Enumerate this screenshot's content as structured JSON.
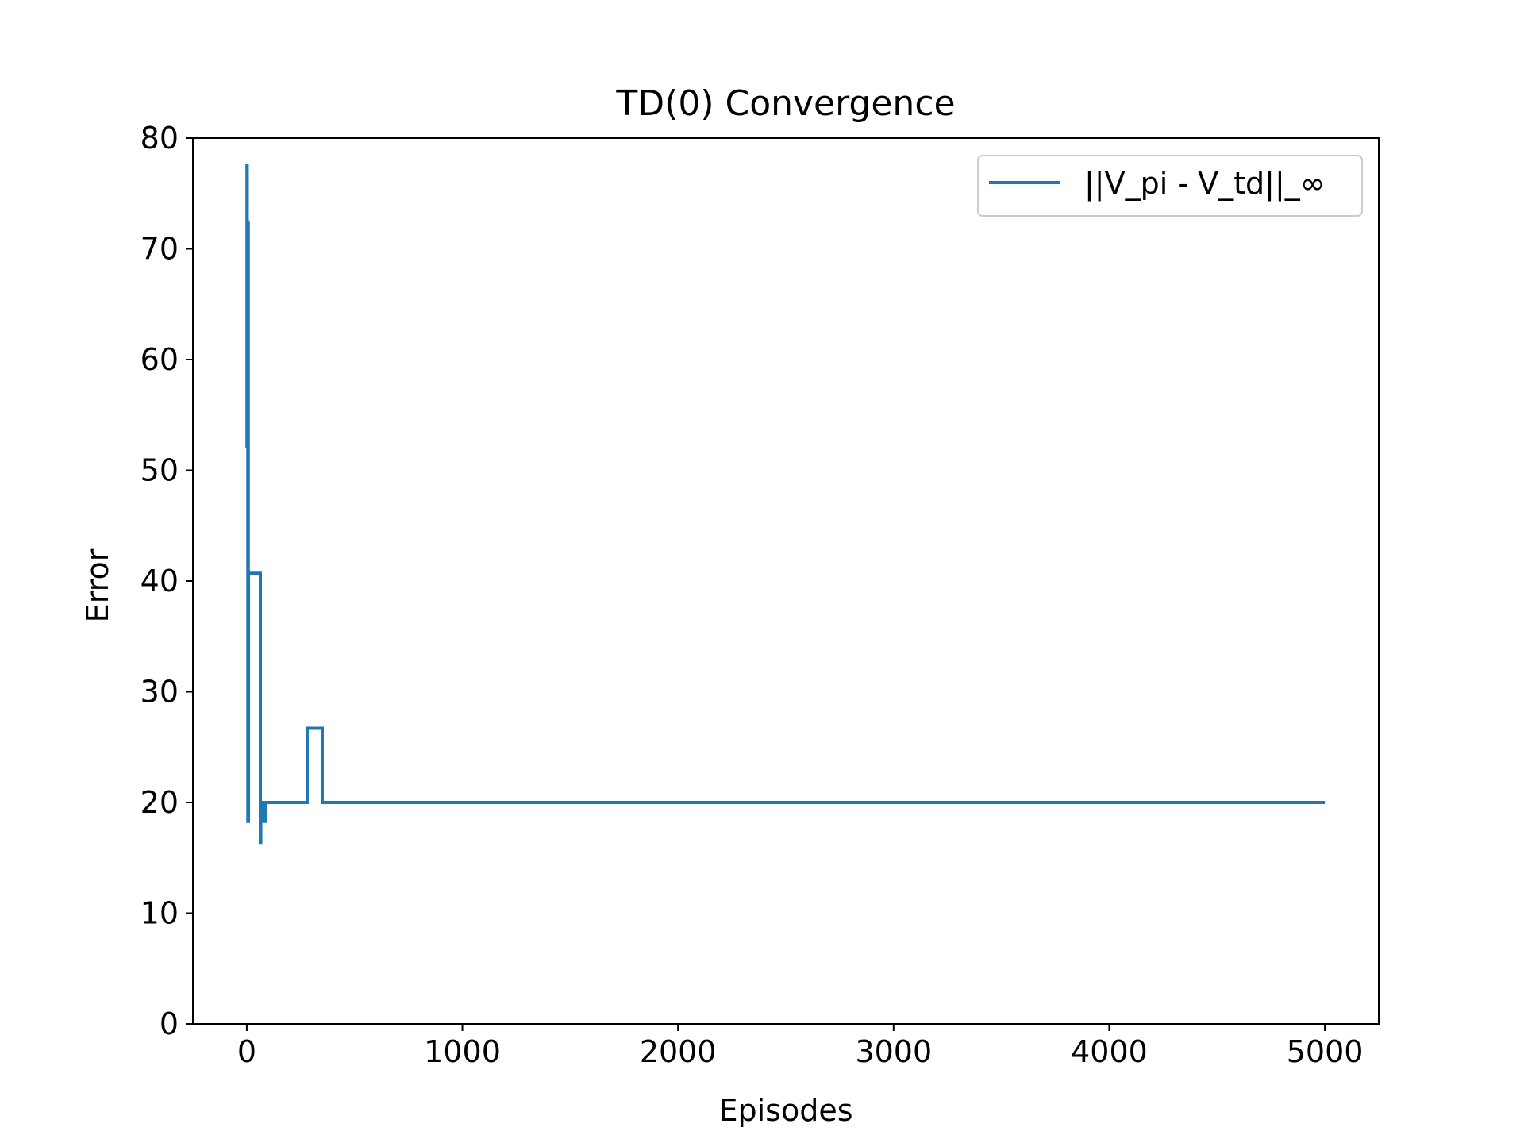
{
  "chart_data": {
    "type": "line",
    "title": "TD(0) Convergence",
    "xlabel": "Episodes",
    "ylabel": "Error",
    "xlim": [
      -250,
      5250
    ],
    "ylim": [
      0,
      80
    ],
    "xticks": [
      0,
      1000,
      2000,
      3000,
      4000,
      5000
    ],
    "xtick_labels": [
      "0",
      "1000",
      "2000",
      "3000",
      "4000",
      "5000"
    ],
    "yticks": [
      0,
      10,
      20,
      30,
      40,
      50,
      60,
      70,
      80
    ],
    "ytick_labels": [
      "0",
      "10",
      "20",
      "30",
      "40",
      "50",
      "60",
      "70",
      "80"
    ],
    "grid": false,
    "legend": {
      "position": "top-right"
    },
    "series": [
      {
        "name": "||V_pi - V_td||_∞",
        "color": "#1f77b4",
        "step": true,
        "x": [
          0,
          1,
          2,
          3,
          4,
          5,
          6,
          7,
          8,
          10,
          12,
          15,
          20,
          25,
          30,
          35,
          40,
          45,
          50,
          55,
          60,
          63,
          65,
          68,
          70,
          75,
          80,
          85,
          90,
          95,
          100,
          150,
          200,
          250,
          280,
          290,
          300,
          350,
          360,
          400,
          500,
          1000,
          2000,
          3000,
          4000,
          5000
        ],
        "values": [
          52,
          77.5,
          72.5,
          72.3,
          60,
          18.3,
          72.3,
          18.3,
          40.7,
          40.7,
          40.7,
          40.7,
          40.7,
          40.7,
          40.7,
          40.7,
          40.7,
          40.7,
          40.7,
          40.7,
          40.7,
          16.4,
          18.3,
          20,
          18.3,
          20,
          18.3,
          20,
          20,
          20,
          20,
          20,
          20,
          20,
          26.7,
          26.7,
          26.7,
          20,
          20,
          20,
          20,
          20,
          20,
          20,
          20,
          20
        ]
      }
    ]
  }
}
